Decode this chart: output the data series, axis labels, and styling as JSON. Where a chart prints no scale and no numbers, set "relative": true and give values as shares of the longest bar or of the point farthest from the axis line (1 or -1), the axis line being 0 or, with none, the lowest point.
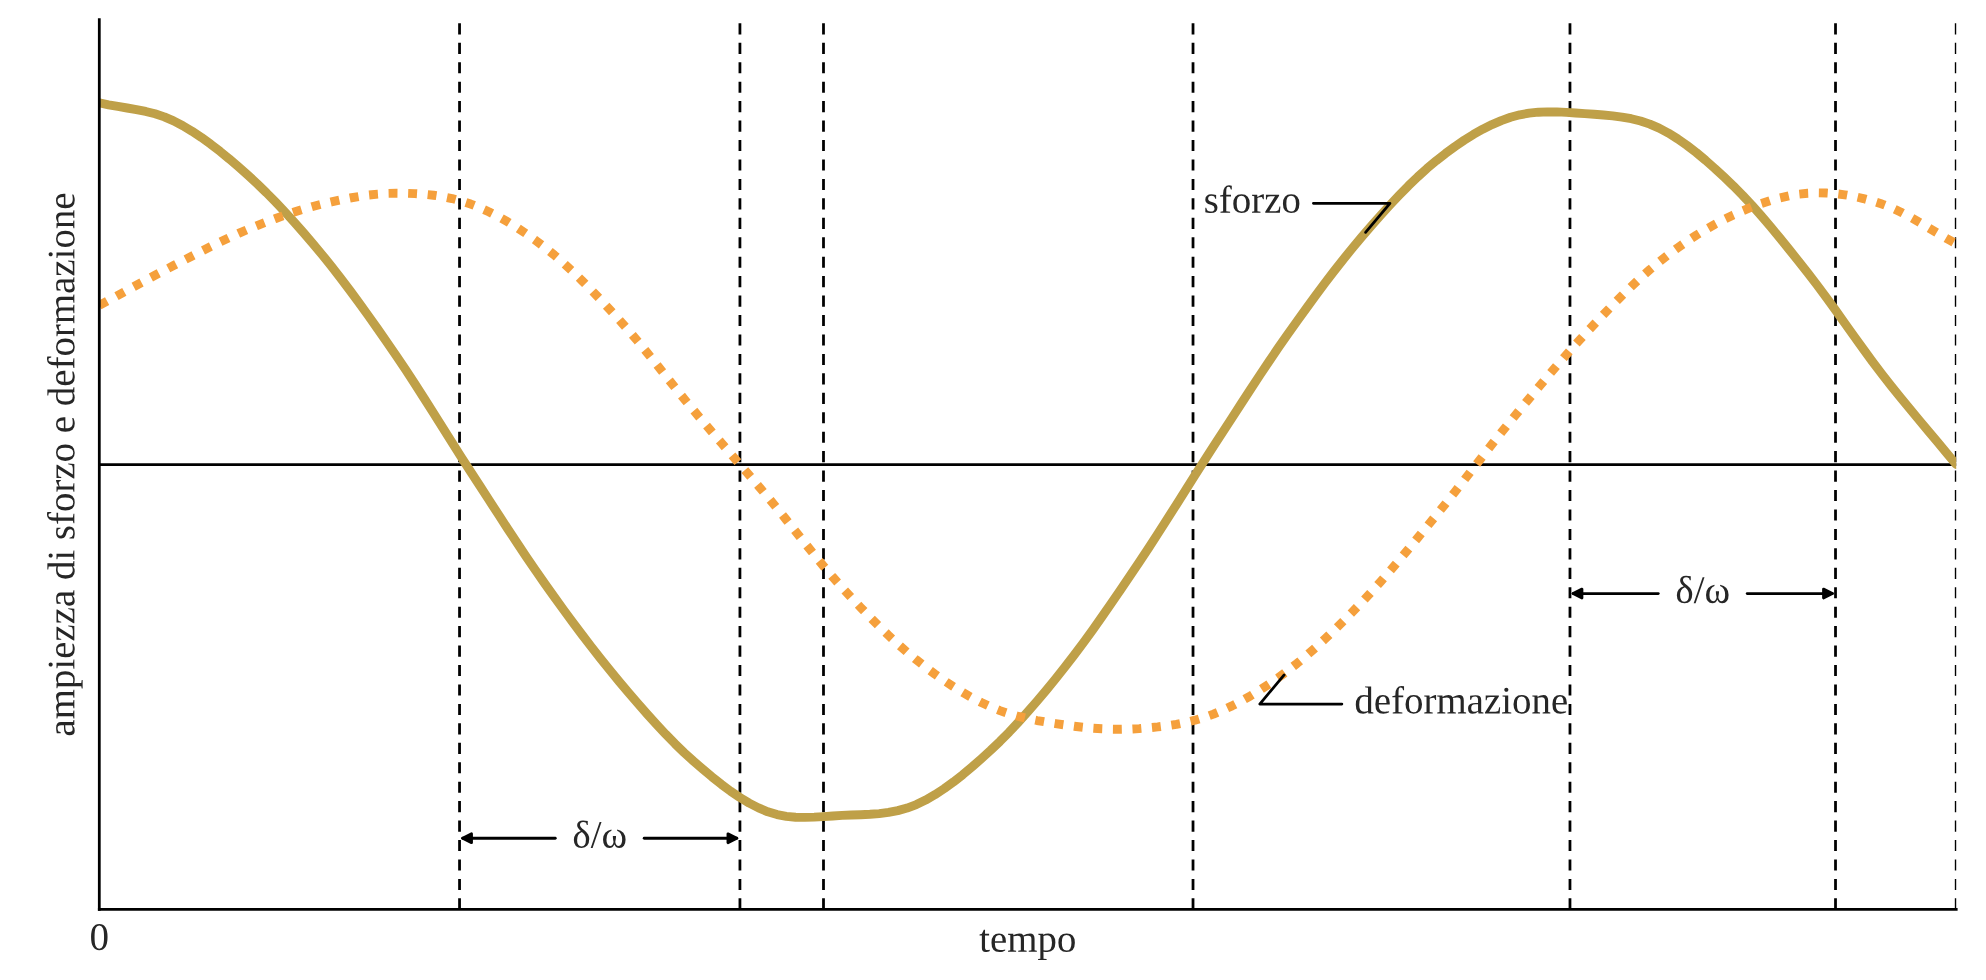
{
  "chart_data": {
    "type": "line",
    "relative": true,
    "xlabel": "tempo",
    "ylabel": "ampiezza di sforzo e deformazione",
    "categories": [
      null,
      null,
      null,
      null,
      null,
      null,
      null,
      null,
      null,
      null,
      null,
      null,
      null,
      null,
      null,
      null,
      null,
      null,
      null,
      null,
      null,
      null,
      null,
      null,
      null,
      null
    ],
    "legend": false,
    "marker": "none",
    "series": [
      {
        "name": "sforzo",
        "color": "#bfa048",
        "line_style": "solid",
        "values": [
          1.0,
          0.95,
          0.8,
          0.58,
          0.3,
          -0.02,
          -0.33,
          -0.6,
          -0.82,
          -0.96,
          -0.97,
          -0.94,
          -0.79,
          -0.56,
          -0.27,
          0.05,
          0.36,
          0.63,
          0.84,
          0.96,
          0.97,
          0.93,
          0.77,
          0.53,
          0.25,
          0.0
        ]
      },
      {
        "name": "deformazione",
        "color": "#f5a03c",
        "line_style": "dotted",
        "values": [
          0.44,
          0.55,
          0.65,
          0.72,
          0.75,
          0.72,
          0.6,
          0.4,
          0.15,
          -0.09,
          -0.34,
          -0.54,
          -0.67,
          -0.72,
          -0.73,
          -0.69,
          -0.57,
          -0.38,
          -0.14,
          0.12,
          0.36,
          0.56,
          0.69,
          0.75,
          0.72,
          0.61
        ]
      }
    ],
    "ref_lines": [
      {
        "axis": "y",
        "value": 0,
        "color": "#000000",
        "line_style": "solid"
      }
    ],
    "annotations": [
      "δ/ω",
      "δ/ω",
      "0"
    ]
  }
}
